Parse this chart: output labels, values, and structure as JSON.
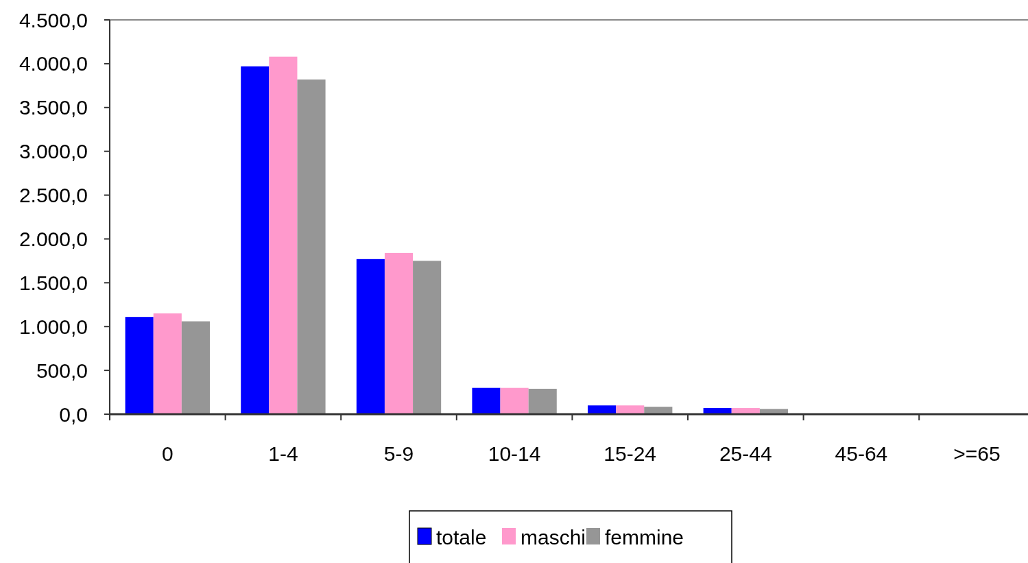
{
  "chart_data": {
    "type": "bar",
    "categories": [
      "0",
      "1-4",
      "5-9",
      "10-14",
      "15-24",
      "25-44",
      "45-64",
      ">=65"
    ],
    "series": [
      {
        "name": "totale",
        "color": "#0000ff",
        "values": [
          1110,
          3970,
          1770,
          300,
          100,
          70,
          0,
          0
        ]
      },
      {
        "name": "maschi",
        "color": "#ff99cc",
        "values": [
          1150,
          4080,
          1840,
          300,
          100,
          70,
          0,
          0
        ]
      },
      {
        "name": "femmine",
        "color": "#969696",
        "values": [
          1060,
          3820,
          1750,
          290,
          85,
          60,
          0,
          0
        ]
      }
    ],
    "ylim": [
      0,
      4500
    ],
    "yticks": [
      {
        "value": 0,
        "label": "0,0"
      },
      {
        "value": 500,
        "label": "500,0"
      },
      {
        "value": 1000,
        "label": "1.000,0"
      },
      {
        "value": 1500,
        "label": "1.500,0"
      },
      {
        "value": 2000,
        "label": "2.000,0"
      },
      {
        "value": 2500,
        "label": "2.500,0"
      },
      {
        "value": 3000,
        "label": "3.000,0"
      },
      {
        "value": 3500,
        "label": "3.500,0"
      },
      {
        "value": 4000,
        "label": "4.000,0"
      },
      {
        "value": 4500,
        "label": "4.500,0"
      }
    ],
    "grid": false,
    "legend": "bottom"
  }
}
